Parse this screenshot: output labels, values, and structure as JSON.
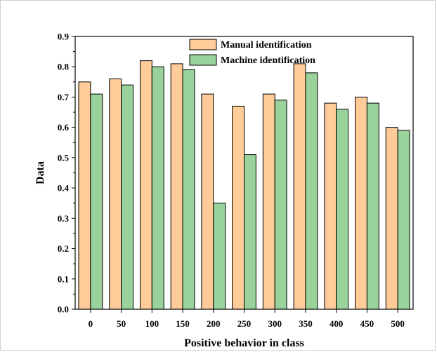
{
  "chart_data": {
    "type": "bar",
    "title": "",
    "xlabel": "Positive behavior in class",
    "ylabel": "Data",
    "categories": [
      "0",
      "50",
      "100",
      "150",
      "200",
      "250",
      "300",
      "350",
      "400",
      "450",
      "500"
    ],
    "series": [
      {
        "name": "Manual identification",
        "color": "#FFCC99",
        "values": [
          0.75,
          0.76,
          0.82,
          0.81,
          0.71,
          0.67,
          0.71,
          0.81,
          0.68,
          0.7,
          0.6
        ]
      },
      {
        "name": "Machine identification",
        "color": "#99D39B",
        "values": [
          0.71,
          0.74,
          0.8,
          0.79,
          0.35,
          0.51,
          0.69,
          0.78,
          0.66,
          0.68,
          0.59
        ]
      }
    ],
    "ylim": [
      0,
      0.9
    ],
    "yticks": [
      "0.0",
      "0.1",
      "0.2",
      "0.3",
      "0.4",
      "0.5",
      "0.6",
      "0.7",
      "0.8",
      "0.9"
    ],
    "grid": false,
    "legend_position": "top-center"
  }
}
